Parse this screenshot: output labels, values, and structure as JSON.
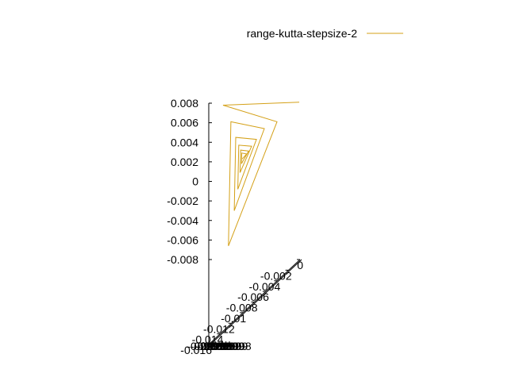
{
  "chart_data": {
    "type": "line",
    "legend": {
      "placement": "top-right"
    },
    "z_axis": {
      "range": [
        -0.008,
        0.008
      ],
      "ticks": [
        "0.008",
        "0.006",
        "0.004",
        "0.002",
        "0",
        "-0.002",
        "-0.004",
        "-0.006",
        "-0.008"
      ]
    },
    "y_axis": {
      "range": [
        -0.016,
        0
      ],
      "ticks": [
        "0",
        "-0.002",
        "-0.004",
        "-0.006",
        "-0.008",
        "-0.01",
        "-0.012",
        "-0.014",
        "-0.016"
      ]
    },
    "x_axis": {
      "range": [
        -1,
        1
      ],
      "ticks": [
        "-0.99998",
        "-0.99999",
        "-0.99999",
        "-0.99999",
        "-0.99999",
        "-0.99999",
        "-0.99998"
      ]
    },
    "series": [
      {
        "name": "range-kutta-stepsize-2",
        "color": "#d4a017",
        "z": [
          0.0081,
          0.0078,
          0.0061,
          -0.0066,
          0.0061,
          0.0054,
          -0.003,
          0.0045,
          0.0043,
          -0.0008,
          0.0037,
          0.0036,
          0.0009,
          0.0032,
          0.0031,
          0.0018,
          0.0029,
          0.0028,
          0.0023
        ]
      }
    ]
  }
}
